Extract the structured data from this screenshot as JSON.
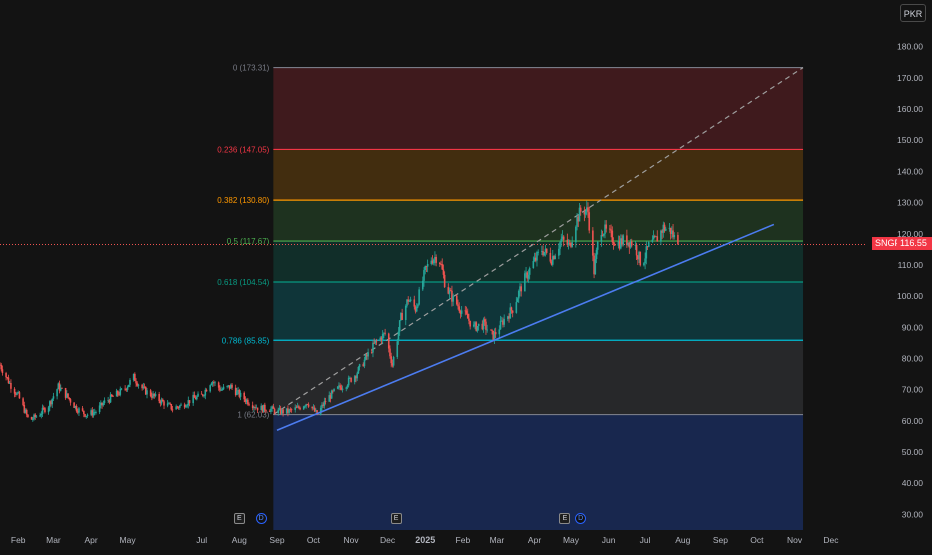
{
  "chart_data": {
    "type": "candlestick",
    "symbol": "SNGP",
    "currency": "PKR",
    "last_price": 116.55,
    "ylim": [
      25,
      186
    ],
    "y_ticks": [
      "30.00",
      "40.00",
      "50.00",
      "60.00",
      "70.00",
      "80.00",
      "90.00",
      "100.00",
      "110.00",
      "120.00",
      "130.00",
      "140.00",
      "150.00",
      "160.00",
      "170.00",
      "180.00"
    ],
    "x_ticks": [
      "Feb",
      "Mar",
      "Apr",
      "May",
      "Jul",
      "Aug",
      "Sep",
      "Oct",
      "Nov",
      "Dec",
      "2025",
      "Feb",
      "Mar",
      "Apr",
      "May",
      "Jun",
      "Jul",
      "Aug",
      "Sep",
      "Oct",
      "Nov",
      "Dec"
    ],
    "x_tick_months": [
      "2024-02",
      "2024-03",
      "2024-04",
      "2024-05",
      "2024-07",
      "2024-08",
      "2024-09",
      "2024-10",
      "2024-11",
      "2024-12",
      "2025-01",
      "2025-02",
      "2025-03",
      "2025-04",
      "2025-05",
      "2025-06",
      "2025-07",
      "2025-08",
      "2025-09",
      "2025-10",
      "2025-11",
      "2025-12"
    ],
    "xlim": [
      "2024-01-17",
      "2025-12-29"
    ],
    "price_path": [
      [
        "2024-01-17",
        78
      ],
      [
        "2024-01-25",
        72
      ],
      [
        "2024-02-01",
        68
      ],
      [
        "2024-02-10",
        60
      ],
      [
        "2024-02-18",
        62
      ],
      [
        "2024-02-26",
        65
      ],
      [
        "2024-03-05",
        71
      ],
      [
        "2024-03-12",
        68
      ],
      [
        "2024-03-20",
        64
      ],
      [
        "2024-03-28",
        62
      ],
      [
        "2024-04-05",
        63
      ],
      [
        "2024-04-12",
        66
      ],
      [
        "2024-04-20",
        68
      ],
      [
        "2024-04-28",
        70
      ],
      [
        "2024-05-06",
        74
      ],
      [
        "2024-05-14",
        70
      ],
      [
        "2024-05-22",
        68
      ],
      [
        "2024-05-30",
        66
      ],
      [
        "2024-06-07",
        64
      ],
      [
        "2024-06-15",
        65
      ],
      [
        "2024-06-23",
        67
      ],
      [
        "2024-07-01",
        68
      ],
      [
        "2024-07-09",
        73
      ],
      [
        "2024-07-17",
        70
      ],
      [
        "2024-07-25",
        71
      ],
      [
        "2024-08-02",
        68
      ],
      [
        "2024-08-09",
        66
      ],
      [
        "2024-08-17",
        64
      ],
      [
        "2024-08-25",
        64
      ],
      [
        "2024-09-02",
        63
      ],
      [
        "2024-09-10",
        63
      ],
      [
        "2024-09-18",
        64
      ],
      [
        "2024-09-26",
        66
      ],
      [
        "2024-10-04",
        62
      ],
      [
        "2024-10-12",
        67
      ],
      [
        "2024-10-20",
        70
      ],
      [
        "2024-10-28",
        72
      ],
      [
        "2024-11-05",
        75
      ],
      [
        "2024-11-13",
        80
      ],
      [
        "2024-11-21",
        85
      ],
      [
        "2024-11-29",
        88
      ],
      [
        "2024-12-05",
        78
      ],
      [
        "2024-12-12",
        93
      ],
      [
        "2024-12-18",
        99
      ],
      [
        "2024-12-24",
        96
      ],
      [
        "2025-01-01",
        108
      ],
      [
        "2025-01-06",
        112
      ],
      [
        "2025-01-12",
        113
      ],
      [
        "2025-01-18",
        103
      ],
      [
        "2025-01-24",
        99
      ],
      [
        "2025-02-01",
        95
      ],
      [
        "2025-02-10",
        90
      ],
      [
        "2025-02-18",
        91
      ],
      [
        "2025-02-26",
        87
      ],
      [
        "2025-03-06",
        92
      ],
      [
        "2025-03-14",
        96
      ],
      [
        "2025-03-22",
        104
      ],
      [
        "2025-03-30",
        110
      ],
      [
        "2025-04-07",
        115
      ],
      [
        "2025-04-15",
        112
      ],
      [
        "2025-04-23",
        118
      ],
      [
        "2025-04-30",
        116
      ],
      [
        "2025-05-05",
        124
      ],
      [
        "2025-05-10",
        128
      ],
      [
        "2025-05-15",
        127
      ],
      [
        "2025-05-20",
        108
      ],
      [
        "2025-05-25",
        122
      ],
      [
        "2025-06-01",
        120
      ],
      [
        "2025-06-08",
        117
      ],
      [
        "2025-06-15",
        118
      ],
      [
        "2025-06-22",
        117
      ],
      [
        "2025-06-28",
        110
      ],
      [
        "2025-07-04",
        116
      ],
      [
        "2025-07-10",
        118
      ],
      [
        "2025-07-16",
        122
      ],
      [
        "2025-07-22",
        121
      ],
      [
        "2025-07-28",
        116.55
      ]
    ],
    "fib_drawing": {
      "start": [
        "2024-08-29",
        62.03
      ],
      "end": [
        "2025-11-08",
        173.31
      ],
      "levels": [
        {
          "ratio": "0",
          "price": 173.31,
          "label": "0 (173.31)",
          "color": "#787b86"
        },
        {
          "ratio": "0.236",
          "price": 147.05,
          "label": "0.236 (147.05)",
          "color": "#f23645"
        },
        {
          "ratio": "0.382",
          "price": 130.8,
          "label": "0.382 (130.80)",
          "color": "#ff9800"
        },
        {
          "ratio": "0.5",
          "price": 117.67,
          "label": "0.5 (117.67)",
          "color": "#4caf50"
        },
        {
          "ratio": "0.618",
          "price": 104.54,
          "label": "0.618 (104.54)",
          "color": "#089981"
        },
        {
          "ratio": "0.786",
          "price": 85.85,
          "label": "0.786 (85.85)",
          "color": "#00bcd4"
        },
        {
          "ratio": "1",
          "price": 62.03,
          "label": "1 (62.03)",
          "color": "#787b86"
        }
      ],
      "zone_colors": [
        "#f23645",
        "#ff9800",
        "#4caf50",
        "#089981",
        "#00bcd4",
        "#787b86"
      ],
      "extension_color": "#2962ff"
    },
    "trend_line": {
      "from": [
        "2024-09-01",
        57
      ],
      "to": [
        "2025-10-15",
        123
      ],
      "color": "#4c7cf0"
    },
    "diagonal": {
      "from": [
        "2024-08-29",
        62.03
      ],
      "to": [
        "2025-11-08",
        173.31
      ],
      "color": "#9e9e9e"
    },
    "events": [
      {
        "type": "earnings",
        "symbol": "E",
        "date": "2024-08-01"
      },
      {
        "type": "dividend",
        "symbol": "D",
        "date": "2024-08-19"
      },
      {
        "type": "earnings",
        "symbol": "E",
        "date": "2024-12-08"
      },
      {
        "type": "earnings",
        "symbol": "E",
        "date": "2025-04-26"
      },
      {
        "type": "dividend",
        "symbol": "D",
        "date": "2025-05-09"
      }
    ],
    "up_color": "#26a69a",
    "down_color": "#ef5350"
  }
}
